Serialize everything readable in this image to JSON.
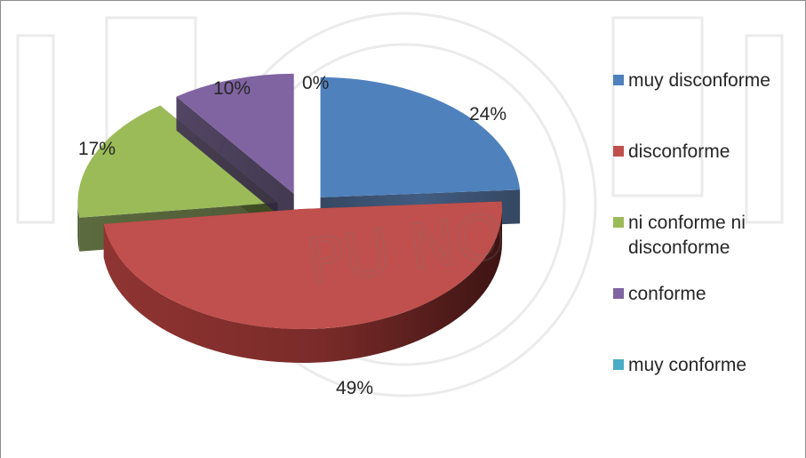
{
  "chart_data": {
    "type": "pie",
    "style": "3d-exploded",
    "categories": [
      "muy disconforme",
      "disconforme",
      "ni conforme ni disconforme",
      "conforme",
      "muy conforme"
    ],
    "values": [
      24,
      49,
      17,
      10,
      0
    ],
    "value_labels": [
      "24%",
      "49%",
      "17%",
      "10%",
      "0%"
    ],
    "colors": [
      "#4f81bd",
      "#c0504d",
      "#9bbb59",
      "#8064a2",
      "#4bacc6"
    ],
    "legend_position": "right",
    "legend": [
      {
        "lines": [
          "muy disconforme"
        ]
      },
      {
        "lines": [
          "disconforme"
        ]
      },
      {
        "lines": [
          "ni conforme ni",
          "disconforme"
        ]
      },
      {
        "lines": [
          "conforme"
        ]
      },
      {
        "lines": [
          "muy conforme"
        ]
      }
    ],
    "watermark": "PU NO"
  }
}
